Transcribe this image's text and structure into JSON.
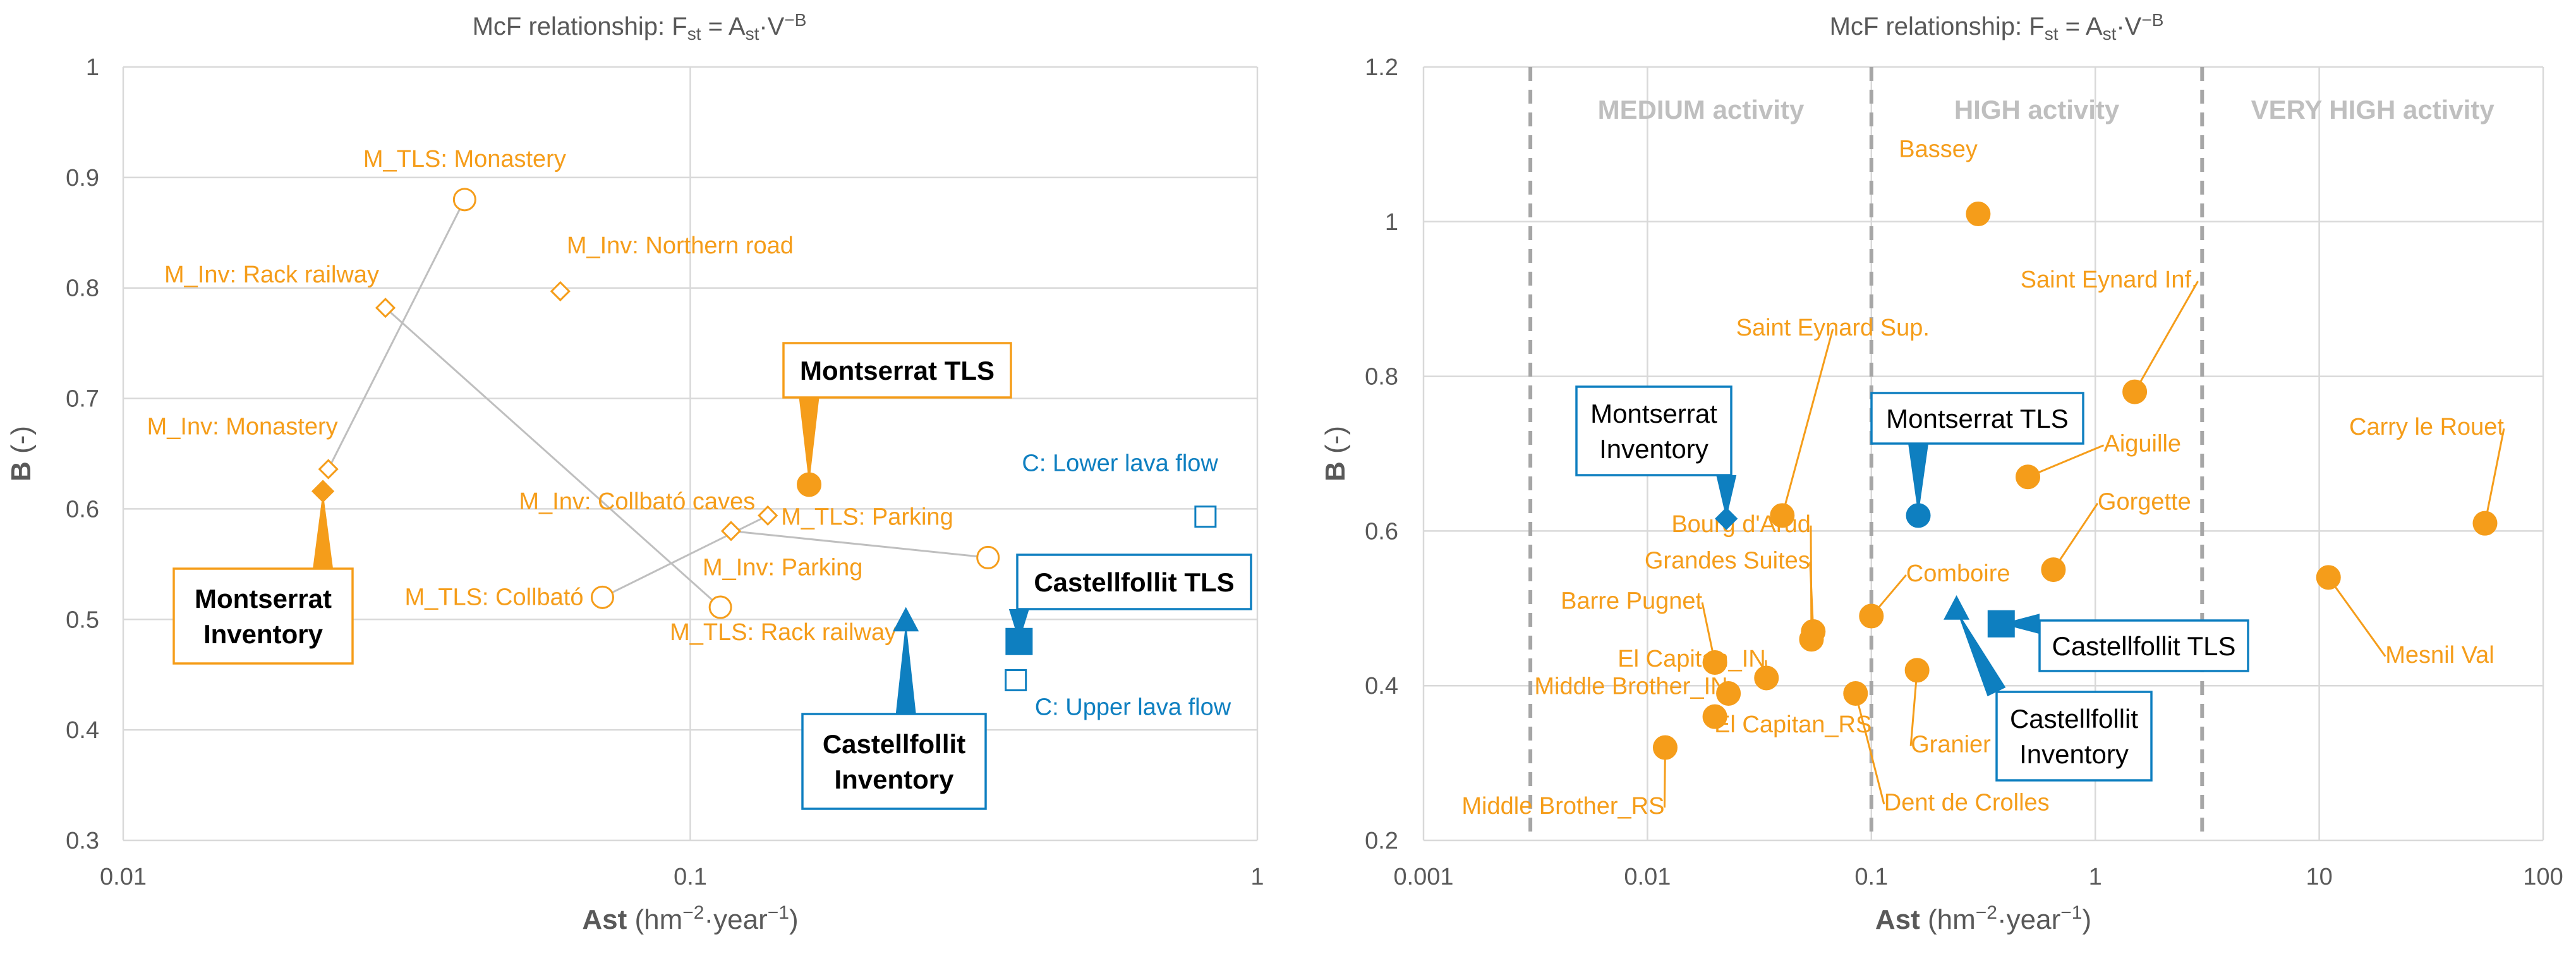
{
  "colors": {
    "orange": "#f59d1a",
    "blue": "#0e7fc0",
    "grey_line": "#bfbfbf",
    "dark": "#000000"
  },
  "chart_data": [
    {
      "type": "scatter",
      "title_prefix": "McF relationship: ",
      "title_formula": "Fst = Ast·V−B",
      "xlabel": "Ast",
      "xlabel_units": "(hm−2·year−1)",
      "ylabel": "B (-)",
      "x_scale": "log",
      "xlim": [
        0.01,
        1
      ],
      "ylim": [
        0.3,
        1
      ],
      "x_ticks": [
        0.01,
        0.1,
        1
      ],
      "x_tick_labels": [
        "0.01",
        "0.1",
        "1"
      ],
      "y_ticks": [
        0.3,
        0.4,
        0.5,
        0.6,
        0.7,
        0.8,
        0.9,
        1
      ],
      "y_tick_labels": [
        "0.3",
        "0.4",
        "0.5",
        "0.6",
        "0.7",
        "0.8",
        "0.9",
        "1"
      ],
      "points": [
        {
          "name": "M_TLS: Monastery",
          "x": 0.04,
          "y": 0.88,
          "marker": "circle-open",
          "color": "orange"
        },
        {
          "name": "M_Inv: Rack railway",
          "x": 0.029,
          "y": 0.782,
          "marker": "diamond-open",
          "color": "orange"
        },
        {
          "name": "M_Inv: Northern road",
          "x": 0.059,
          "y": 0.797,
          "marker": "diamond-open",
          "color": "orange"
        },
        {
          "name": "M_Inv: Monastery",
          "x": 0.023,
          "y": 0.636,
          "marker": "diamond-open",
          "color": "orange"
        },
        {
          "name": "M_Inv: Collbató caves",
          "x": 0.137,
          "y": 0.594,
          "marker": "diamond-open",
          "color": "orange"
        },
        {
          "name": "M_Inv: Parking",
          "x": 0.118,
          "y": 0.58,
          "marker": "diamond-open",
          "color": "orange"
        },
        {
          "name": "M_TLS: Parking",
          "x": 0.335,
          "y": 0.556,
          "marker": "circle-open",
          "color": "orange"
        },
        {
          "name": "M_TLS: Collbató",
          "x": 0.07,
          "y": 0.52,
          "marker": "circle-open",
          "color": "orange"
        },
        {
          "name": "M_TLS: Rack railway",
          "x": 0.113,
          "y": 0.511,
          "marker": "circle-open",
          "color": "orange"
        },
        {
          "name": "C: Lower lava flow",
          "x": 0.81,
          "y": 0.593,
          "marker": "square-open",
          "color": "blue"
        },
        {
          "name": "C: Upper lava flow",
          "x": 0.375,
          "y": 0.445,
          "marker": "square-open",
          "color": "blue"
        },
        {
          "name": "Montserrat TLS",
          "x": 0.162,
          "y": 0.622,
          "marker": "circle",
          "color": "orange"
        },
        {
          "name": "Montserrat Inventory",
          "x": 0.0225,
          "y": 0.616,
          "marker": "diamond",
          "color": "orange"
        },
        {
          "name": "Castellfollit TLS",
          "x": 0.38,
          "y": 0.48,
          "marker": "square",
          "color": "blue"
        },
        {
          "name": "Castellfollit Inventory",
          "x": 0.24,
          "y": 0.498,
          "marker": "triangle",
          "color": "blue"
        }
      ],
      "callouts": [
        {
          "lines": [
            "Montserrat TLS"
          ],
          "color": "orange"
        },
        {
          "lines": [
            "Montserrat",
            "Inventory"
          ],
          "color": "orange"
        },
        {
          "lines": [
            "Castellfollit TLS"
          ],
          "color": "blue"
        },
        {
          "lines": [
            "Castellfollit",
            "Inventory"
          ],
          "color": "blue"
        }
      ]
    },
    {
      "type": "scatter",
      "title_prefix": "McF relationship: ",
      "title_formula": "Fst = Ast·V−B",
      "xlabel": "Ast",
      "xlabel_units": "(hm−2·year−1)",
      "ylabel": "B (-)",
      "x_scale": "log",
      "xlim": [
        0.001,
        100
      ],
      "ylim": [
        0.2,
        1.2
      ],
      "x_ticks": [
        0.001,
        0.01,
        0.1,
        1,
        10,
        100
      ],
      "x_tick_labels": [
        "0.001",
        "0.01",
        "0.1",
        "1",
        "10",
        "100"
      ],
      "y_ticks": [
        0.2,
        0.4,
        0.6,
        0.8,
        1,
        1.2
      ],
      "y_tick_labels": [
        "0.2",
        "0.4",
        "0.6",
        "0.8",
        "1",
        "1.2"
      ],
      "activity_thresholds": [
        0.003,
        0.1,
        3
      ],
      "activity_labels": [
        "MEDIUM activity",
        "HIGH activity",
        "VERY HIGH activity"
      ],
      "points": [
        {
          "name": "Bassey",
          "x": 0.3,
          "y": 1.01,
          "marker": "circle",
          "color": "orange"
        },
        {
          "name": "Saint Eynard Inf.",
          "x": 1.5,
          "y": 0.78,
          "marker": "circle",
          "color": "orange"
        },
        {
          "name": "Saint Eynard Sup.",
          "x": 0.04,
          "y": 0.62,
          "marker": "circle",
          "color": "orange"
        },
        {
          "name": "Aiguille",
          "x": 0.5,
          "y": 0.67,
          "marker": "circle",
          "color": "orange"
        },
        {
          "name": "Carry le Rouet",
          "x": 55,
          "y": 0.61,
          "marker": "circle",
          "color": "orange"
        },
        {
          "name": "Gorgette",
          "x": 0.65,
          "y": 0.55,
          "marker": "circle",
          "color": "orange"
        },
        {
          "name": "Mesnil Val",
          "x": 11,
          "y": 0.54,
          "marker": "circle",
          "color": "orange"
        },
        {
          "name": "Grandes Suites",
          "x": 0.055,
          "y": 0.47,
          "marker": "circle",
          "color": "orange"
        },
        {
          "name": "Bourg d'Arud",
          "x": 0.054,
          "y": 0.46,
          "marker": "circle",
          "color": "orange"
        },
        {
          "name": "Comboire",
          "x": 0.1,
          "y": 0.49,
          "marker": "circle",
          "color": "orange"
        },
        {
          "name": "Barre Pugnet",
          "x": 0.02,
          "y": 0.43,
          "marker": "circle",
          "color": "orange"
        },
        {
          "name": "El Capitan_IN",
          "x": 0.034,
          "y": 0.41,
          "marker": "circle",
          "color": "orange"
        },
        {
          "name": "Middle Brother_IN",
          "x": 0.023,
          "y": 0.39,
          "marker": "circle",
          "color": "orange"
        },
        {
          "name": "El Capitan_RS",
          "x": 0.02,
          "y": 0.36,
          "marker": "circle",
          "color": "orange"
        },
        {
          "name": "Middle Brother_RS",
          "x": 0.012,
          "y": 0.32,
          "marker": "circle",
          "color": "orange"
        },
        {
          "name": "Granier",
          "x": 0.16,
          "y": 0.42,
          "marker": "circle",
          "color": "orange"
        },
        {
          "name": "Dent de Crolles",
          "x": 0.085,
          "y": 0.39,
          "marker": "circle",
          "color": "orange"
        },
        {
          "name": "Montserrat TLS",
          "x": 0.162,
          "y": 0.62,
          "marker": "circle",
          "color": "blue"
        },
        {
          "name": "Montserrat Inventory",
          "x": 0.0225,
          "y": 0.616,
          "marker": "diamond",
          "color": "blue"
        },
        {
          "name": "Castellfollit TLS",
          "x": 0.38,
          "y": 0.48,
          "marker": "square",
          "color": "blue"
        },
        {
          "name": "Castellfollit Inventory",
          "x": 0.24,
          "y": 0.498,
          "marker": "triangle",
          "color": "blue"
        }
      ],
      "callouts": [
        {
          "lines": [
            "Montserrat",
            "Inventory"
          ],
          "color": "blue"
        },
        {
          "lines": [
            "Montserrat TLS"
          ],
          "color": "blue"
        },
        {
          "lines": [
            "Castellfollit TLS"
          ],
          "color": "blue"
        },
        {
          "lines": [
            "Castellfollit",
            "Inventory"
          ],
          "color": "blue"
        }
      ]
    }
  ]
}
